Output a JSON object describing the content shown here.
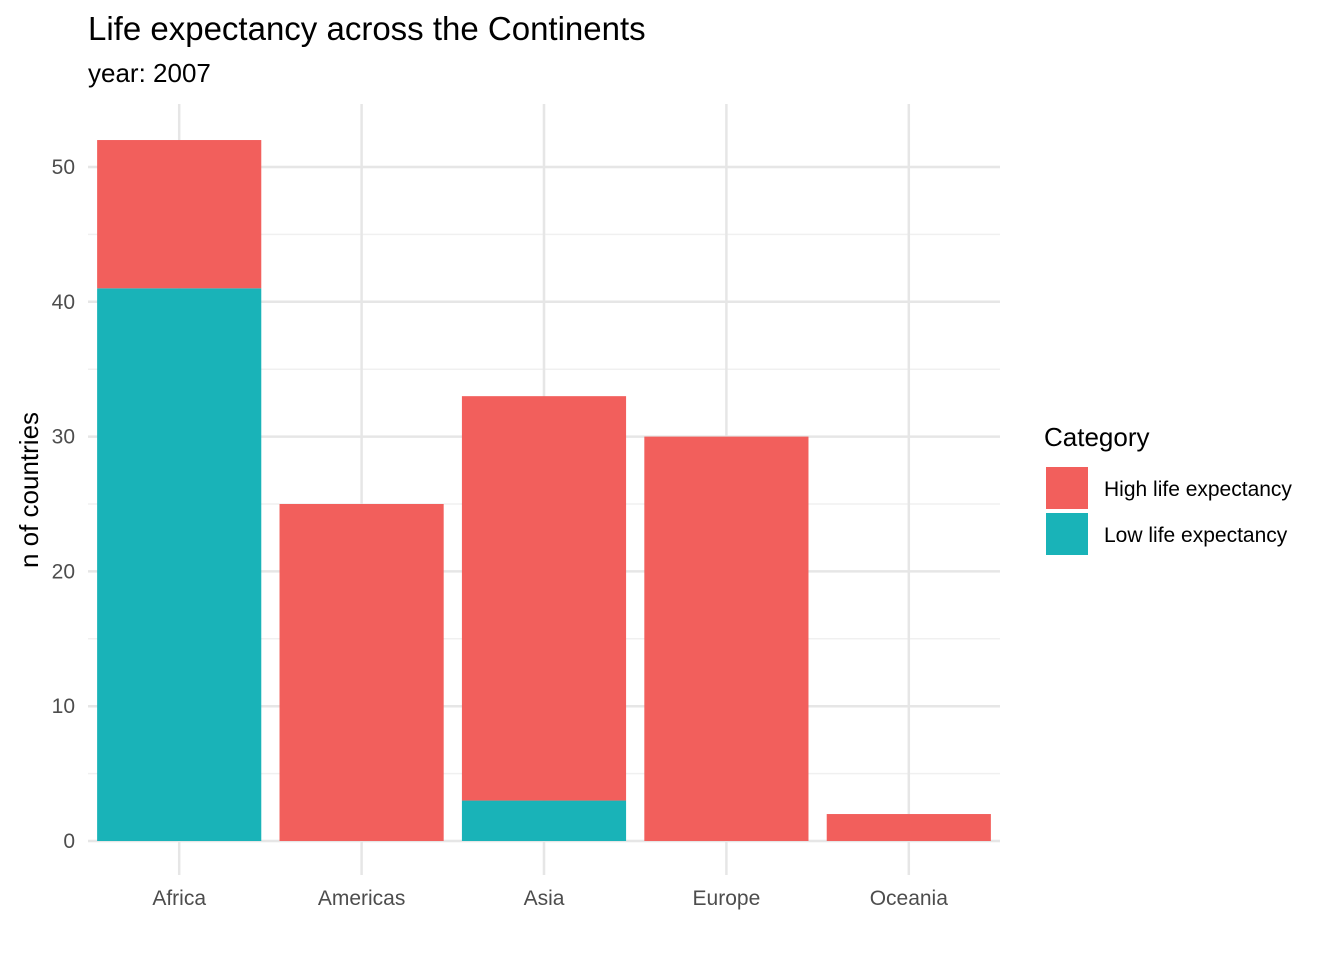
{
  "chart_data": {
    "type": "bar",
    "stacked": true,
    "title": "Life expectancy across the Continents",
    "subtitle": "year: 2007",
    "xlabel": "",
    "ylabel": "n of countries",
    "categories": [
      "Africa",
      "Americas",
      "Asia",
      "Europe",
      "Oceania"
    ],
    "series": [
      {
        "name": "Low life expectancy",
        "color": "#19B3B8",
        "values": [
          41,
          0,
          3,
          0,
          0
        ]
      },
      {
        "name": "High life expectancy",
        "color": "#F25F5C",
        "values": [
          11,
          25,
          30,
          30,
          2
        ]
      }
    ],
    "ylim": [
      0,
      53.5
    ],
    "yticks": [
      0,
      10,
      20,
      30,
      40,
      50
    ],
    "grid": true,
    "legend": {
      "title": "Category",
      "position": "right",
      "entries": [
        "High life expectancy",
        "Low life expectancy"
      ]
    }
  }
}
